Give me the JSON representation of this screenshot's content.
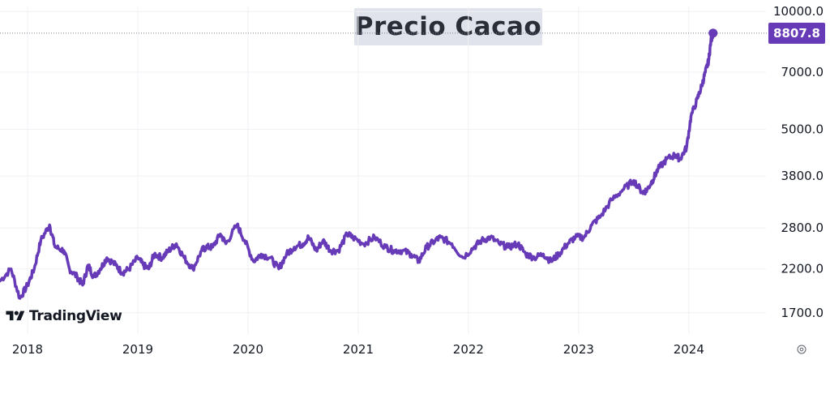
{
  "chart_data": {
    "type": "line",
    "title": "Precio Cacao",
    "xlabel": "",
    "ylabel": "",
    "x_tick_labels": [
      "2018",
      "2019",
      "2020",
      "2021",
      "2022",
      "2023",
      "2024"
    ],
    "y_tick_labels": [
      "10000.0",
      "7000.0",
      "5000.0",
      "3800.0",
      "2800.0",
      "2200.0",
      "1700.0"
    ],
    "y_scale": "log",
    "ylim": [
      1500,
      10300
    ],
    "xlim": [
      2017.75,
      2024.7
    ],
    "grid": true,
    "last_value_label": "8807.8",
    "series": [
      {
        "color": "#673ab7",
        "x": [
          2017.75,
          2017.85,
          2017.93,
          2018.0,
          2018.06,
          2018.12,
          2018.2,
          2018.25,
          2018.33,
          2018.38,
          2018.45,
          2018.5,
          2018.55,
          2018.6,
          2018.66,
          2018.72,
          2018.8,
          2018.86,
          2018.92,
          2019.0,
          2019.05,
          2019.1,
          2019.15,
          2019.22,
          2019.28,
          2019.35,
          2019.42,
          2019.5,
          2019.58,
          2019.62,
          2019.68,
          2019.75,
          2019.8,
          2019.9,
          2019.97,
          2020.05,
          2020.12,
          2020.2,
          2020.28,
          2020.35,
          2020.42,
          2020.5,
          2020.55,
          2020.62,
          2020.68,
          2020.75,
          2020.82,
          2020.9,
          2020.95,
          2021.05,
          2021.15,
          2021.25,
          2021.32,
          2021.4,
          2021.48,
          2021.55,
          2021.62,
          2021.7,
          2021.75,
          2021.85,
          2021.95,
          2022.05,
          2022.12,
          2022.2,
          2022.28,
          2022.36,
          2022.45,
          2022.52,
          2022.6,
          2022.68,
          2022.75,
          2022.82,
          2022.9,
          2022.97,
          2023.05,
          2023.12,
          2023.2,
          2023.3,
          2023.4,
          2023.5,
          2023.58,
          2023.62,
          2023.67,
          2023.72,
          2023.8,
          2023.88,
          2023.92,
          2023.98,
          2024.02,
          2024.08,
          2024.12,
          2024.15,
          2024.18,
          2024.2,
          2024.22
        ],
        "y": [
          2050,
          2200,
          1850,
          2000,
          2200,
          2600,
          2850,
          2500,
          2450,
          2200,
          2100,
          2000,
          2250,
          2100,
          2200,
          2350,
          2250,
          2150,
          2200,
          2350,
          2250,
          2200,
          2400,
          2350,
          2450,
          2550,
          2350,
          2200,
          2450,
          2500,
          2500,
          2700,
          2550,
          2850,
          2600,
          2300,
          2400,
          2350,
          2200,
          2400,
          2500,
          2550,
          2650,
          2450,
          2600,
          2450,
          2450,
          2700,
          2650,
          2550,
          2650,
          2500,
          2450,
          2450,
          2400,
          2300,
          2500,
          2600,
          2650,
          2550,
          2350,
          2500,
          2600,
          2650,
          2550,
          2500,
          2550,
          2400,
          2350,
          2400,
          2300,
          2400,
          2550,
          2650,
          2650,
          2850,
          3000,
          3300,
          3500,
          3700,
          3450,
          3500,
          3700,
          3950,
          4200,
          4300,
          4200,
          4500,
          5400,
          6000,
          6500,
          7000,
          7500,
          8400,
          8807.8
        ]
      }
    ]
  }
}
